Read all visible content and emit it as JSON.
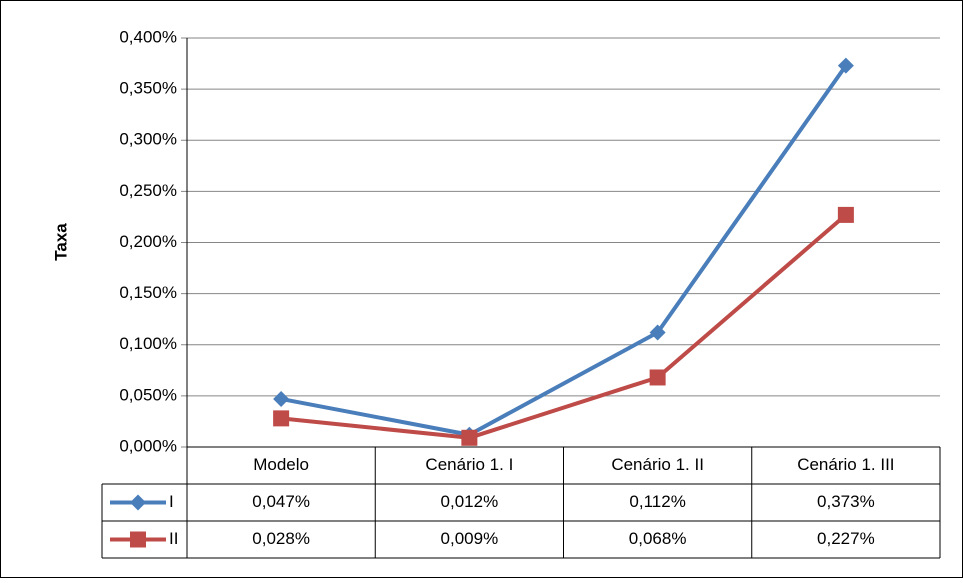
{
  "chart_data": {
    "type": "line",
    "y_label": "Taxa",
    "categories": [
      "Modelo",
      "Cenário 1. I",
      "Cenário 1. II",
      "Cenário 1. III"
    ],
    "series": [
      {
        "name": "I",
        "color": "#4a7ebb",
        "marker": "diamond",
        "values": [
          0.047,
          0.012,
          0.112,
          0.373
        ],
        "value_labels": [
          "0,047%",
          "0,012%",
          "0,112%",
          "0,373%"
        ]
      },
      {
        "name": "II",
        "color": "#be4b48",
        "marker": "square",
        "values": [
          0.028,
          0.009,
          0.068,
          0.227
        ],
        "value_labels": [
          "0,028%",
          "0,009%",
          "0,068%",
          "0,227%"
        ]
      }
    ],
    "ylim": [
      0,
      0.4
    ],
    "yticks": [
      {
        "value": 0,
        "label": "0,000%"
      },
      {
        "value": 0.05,
        "label": "0,050%"
      },
      {
        "value": 0.1,
        "label": "0,100%"
      },
      {
        "value": 0.15,
        "label": "0,150%"
      },
      {
        "value": 0.2,
        "label": "0,200%"
      },
      {
        "value": 0.25,
        "label": "0,250%"
      },
      {
        "value": 0.3,
        "label": "0,300%"
      },
      {
        "value": 0.35,
        "label": "0,350%"
      },
      {
        "value": 0.4,
        "label": "0,400%"
      }
    ],
    "grid": true
  }
}
